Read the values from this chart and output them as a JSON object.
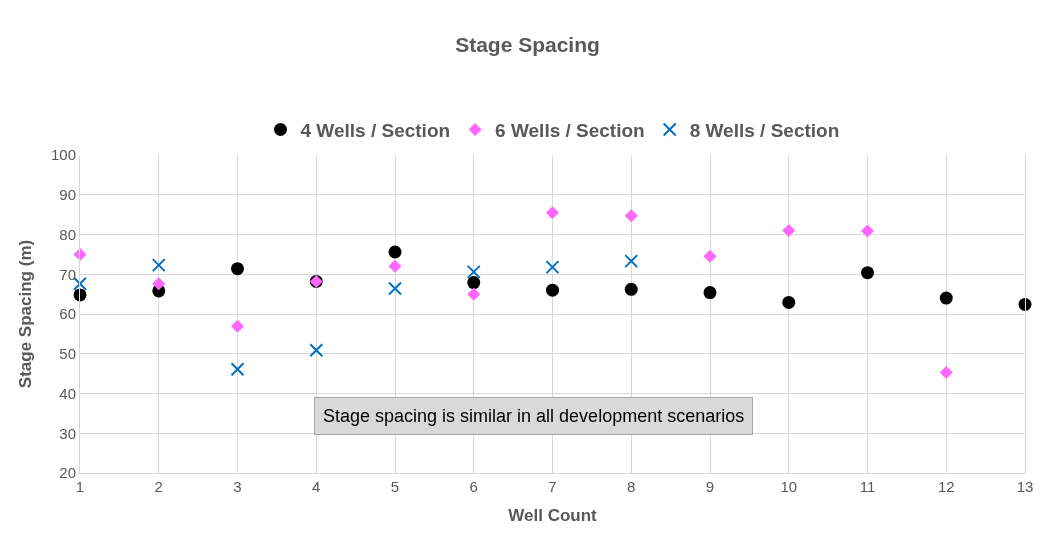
{
  "chart_data": {
    "type": "scatter",
    "title": "Stage Spacing",
    "xlabel": "Well Count",
    "ylabel": "Stage Spacing (m)",
    "xlim": [
      1,
      13
    ],
    "xticks": [
      1,
      2,
      3,
      4,
      5,
      6,
      7,
      8,
      9,
      10,
      11,
      12,
      13
    ],
    "ylim": [
      20,
      100
    ],
    "yticks": [
      20,
      30,
      40,
      50,
      60,
      70,
      80,
      90,
      100
    ],
    "grid": true,
    "legend": "top",
    "annotations": [
      "Stage spacing is similar in all development scenarios"
    ],
    "series": [
      {
        "name": "4 Wells / Section",
        "color": "#000000",
        "marker": "circle",
        "x": [
          1,
          2,
          3,
          4,
          5,
          6,
          7,
          8,
          9,
          10,
          11,
          12,
          13
        ],
        "values": [
          64.8,
          65.8,
          71.4,
          68.2,
          75.6,
          67.9,
          66.0,
          66.2,
          65.4,
          62.9,
          70.4,
          64.0,
          62.4
        ]
      },
      {
        "name": "6 Wells / Section",
        "color": "#ff66ff",
        "marker": "diamond",
        "x": [
          1,
          2,
          3,
          4,
          5,
          6,
          7,
          8,
          9,
          10,
          11,
          12
        ],
        "values": [
          75.0,
          67.6,
          56.9,
          68.2,
          72.0,
          65.0,
          85.5,
          84.7,
          74.5,
          81.0,
          80.9,
          45.3
        ]
      },
      {
        "name": "8 Wells / Section",
        "color": "#0070c0",
        "marker": "cross",
        "x": [
          1,
          2,
          3,
          4,
          5,
          6,
          7,
          8
        ],
        "values": [
          67.6,
          72.3,
          46.1,
          50.9,
          66.4,
          70.6,
          71.8,
          73.3
        ]
      }
    ]
  }
}
